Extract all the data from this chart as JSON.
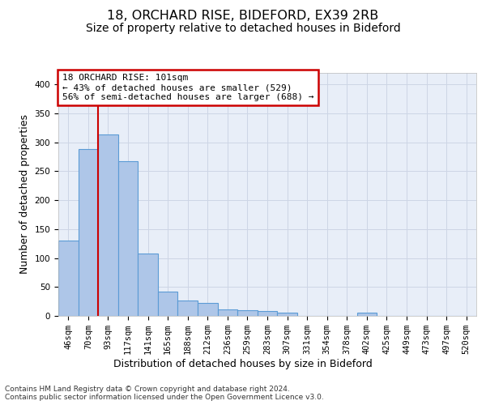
{
  "title1": "18, ORCHARD RISE, BIDEFORD, EX39 2RB",
  "title2": "Size of property relative to detached houses in Bideford",
  "xlabel": "Distribution of detached houses by size in Bideford",
  "ylabel": "Number of detached properties",
  "footnote1": "Contains HM Land Registry data © Crown copyright and database right 2024.",
  "footnote2": "Contains public sector information licensed under the Open Government Licence v3.0.",
  "bin_labels": [
    "46sqm",
    "70sqm",
    "93sqm",
    "117sqm",
    "141sqm",
    "165sqm",
    "188sqm",
    "212sqm",
    "236sqm",
    "259sqm",
    "283sqm",
    "307sqm",
    "331sqm",
    "354sqm",
    "378sqm",
    "402sqm",
    "425sqm",
    "449sqm",
    "473sqm",
    "497sqm",
    "520sqm"
  ],
  "bar_values": [
    130,
    288,
    313,
    267,
    108,
    42,
    26,
    23,
    11,
    10,
    8,
    5,
    0,
    0,
    0,
    5,
    0,
    0,
    0,
    0,
    0
  ],
  "bar_color": "#aec6e8",
  "bar_edge_color": "#5b9bd5",
  "annotation_text_line1": "18 ORCHARD RISE: 101sqm",
  "annotation_text_line2": "← 43% of detached houses are smaller (529)",
  "annotation_text_line3": "56% of semi-detached houses are larger (688) →",
  "annotation_box_facecolor": "#ffffff",
  "annotation_box_edgecolor": "#cc0000",
  "vline_position": 1.5,
  "vline_color": "#cc0000",
  "ylim_max": 420,
  "yticks": [
    0,
    50,
    100,
    150,
    200,
    250,
    300,
    350,
    400
  ],
  "grid_color": "#cdd5e5",
  "plot_bg_color": "#e8eef8",
  "title1_fontsize": 11.5,
  "title2_fontsize": 10,
  "axis_label_fontsize": 9,
  "tick_fontsize": 7.5,
  "annotation_fontsize": 8,
  "footnote_fontsize": 6.5
}
